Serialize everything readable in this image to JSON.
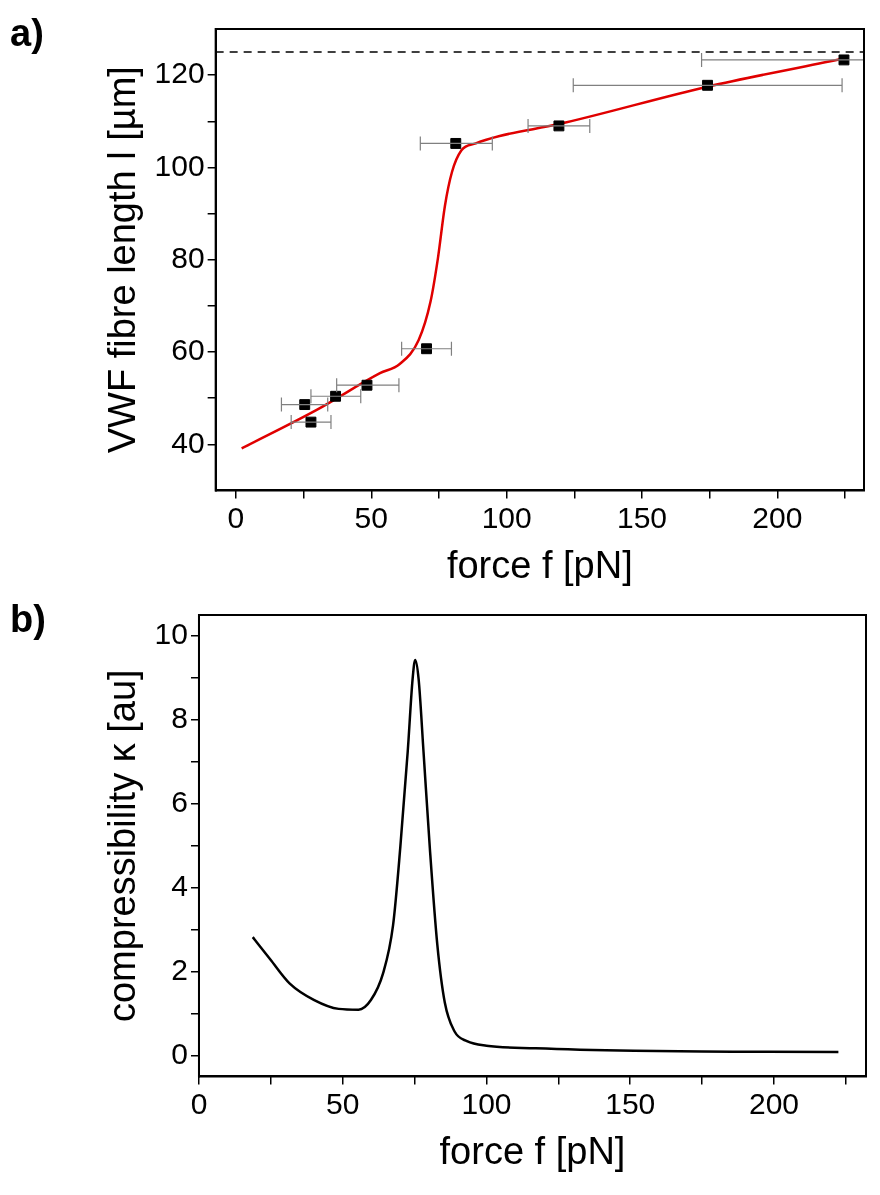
{
  "chart_data": [
    {
      "type": "scatter",
      "title": "a)",
      "xlabel": "force f [pN]",
      "ylabel": "VWF fibre length l [µm]",
      "xlim": [
        -7.5,
        232
      ],
      "ylim": [
        30,
        130
      ],
      "grid": false,
      "xticks": [
        0,
        {
          "value": 25,
          "label": null
        },
        50,
        {
          "value": 75,
          "label": null
        },
        100,
        {
          "value": 125,
          "label": null
        },
        150,
        {
          "value": 175,
          "label": null
        },
        200,
        {
          "value": 225,
          "label": null
        }
      ],
      "yticks": [
        40,
        {
          "value": 50,
          "label": null
        },
        60,
        {
          "value": 70,
          "label": null
        },
        80,
        {
          "value": 90,
          "label": null
        },
        100,
        {
          "value": 110,
          "label": null
        },
        120
      ],
      "ref_lines": [
        {
          "axis": "y",
          "value": 125,
          "color": "#000000",
          "line_style": "dashed"
        }
      ],
      "series": [
        {
          "color": "#000000",
          "marker": "square",
          "x": [
            25.4,
            27.7,
            36.8,
            48.4,
            70.4,
            81.2,
            119.3,
            174.2,
            224.6
          ],
          "values": [
            48.6,
            44.8,
            50.4,
            52.8,
            60.7,
            105.2,
            109.0,
            117.8,
            123.3
          ],
          "xerrors": [
            [
              16.8,
              33.9
            ],
            [
              20.4,
              35.1
            ],
            [
              27.7,
              46.1
            ],
            [
              37.2,
              60.2
            ],
            [
              61.2,
              79.6
            ],
            [
              68.1,
              94.7
            ],
            [
              107.9,
              130.7
            ],
            [
              124.6,
              223.9
            ],
            [
              172,
              232
            ]
          ]
        },
        {
          "type": "line",
          "color": "#e00000",
          "marker": "none",
          "line_style": "solid",
          "x": [
            2.1,
            30,
            53.2,
            60.5,
            67.5,
            71.9,
            74.6,
            77.2,
            79.8,
            83.3,
            88.6,
            97.4,
            119.3,
            174.2,
            224.6
          ],
          "values": [
            39.1,
            47.5,
            55.4,
            57.4,
            62.6,
            71,
            80.3,
            91.7,
            99,
            103.7,
            105.2,
            106.8,
            109.4,
            117.5,
            123.6
          ]
        }
      ]
    },
    {
      "type": "line",
      "title": "b)",
      "xlabel": "force f [pN]",
      "ylabel": "compressibility κ [au]",
      "xlim": [
        0,
        232
      ],
      "ylim": [
        -0.5,
        10.5
      ],
      "grid": false,
      "xticks": [
        0,
        {
          "value": 25,
          "label": null
        },
        50,
        {
          "value": 75,
          "label": null
        },
        100,
        {
          "value": 125,
          "label": null
        },
        150,
        {
          "value": 175,
          "label": null
        },
        200,
        {
          "value": 225,
          "label": null
        }
      ],
      "yticks": [
        0,
        {
          "value": 1,
          "label": null
        },
        2,
        {
          "value": 3,
          "label": null
        },
        4,
        {
          "value": 5,
          "label": null
        },
        6,
        {
          "value": 7,
          "label": null
        },
        8,
        {
          "value": 9,
          "label": null
        },
        10
      ],
      "series": [
        {
          "color": "#000000",
          "marker": "none",
          "line_style": "solid",
          "x": [
            18.7,
            24.7,
            31.5,
            40.1,
            48.6,
            55.5,
            59.8,
            64.0,
            67.5,
            70.0,
            72.6,
            74.3,
            75.2,
            76.4,
            78.1,
            80.3,
            82.9,
            85.5,
            88.9,
            93.2,
            100,
            117.1,
            151.4,
            185.6,
            222.4
          ],
          "values": [
            2.82,
            2.3,
            1.72,
            1.32,
            1.11,
            1.09,
            1.32,
            1.95,
            3.1,
            4.94,
            7.24,
            8.97,
            9.43,
            8.97,
            7.24,
            4.94,
            2.64,
            1.26,
            0.57,
            0.34,
            0.23,
            0.17,
            0.11,
            0.09,
            0.08
          ]
        }
      ]
    }
  ]
}
